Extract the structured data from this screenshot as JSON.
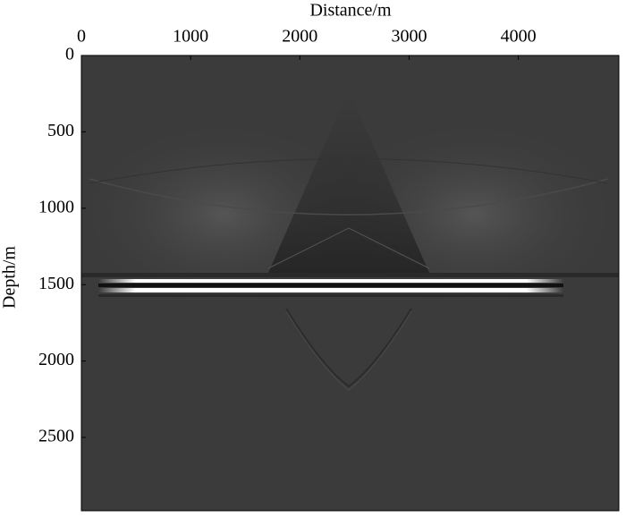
{
  "chart_data": {
    "type": "image",
    "x_label": "Distance/m",
    "y_label": "Depth/m",
    "xlim": [
      0,
      4920
    ],
    "xticks": [
      0,
      1000,
      2000,
      3000,
      4000
    ],
    "x_axis_position": "top",
    "ylim": [
      2980,
      0
    ],
    "yticks": [
      0,
      500,
      1000,
      1500,
      2000,
      2500
    ]
  }
}
